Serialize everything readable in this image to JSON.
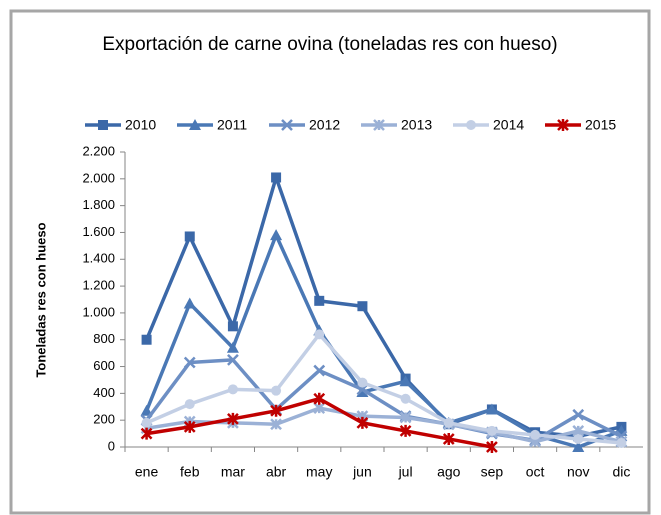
{
  "chart_data": {
    "type": "line",
    "title": "Exportación de carne ovina (toneladas res con hueso)",
    "y_label": "Toneladas res con hueso",
    "categories": [
      "ene",
      "feb",
      "mar",
      "abr",
      "may",
      "jun",
      "jul",
      "ago",
      "sep",
      "oct",
      "nov",
      "dic"
    ],
    "series": [
      {
        "name": "2010",
        "color": "#3b68a8",
        "marker": "square",
        "values": [
          800,
          1570,
          900,
          2010,
          1090,
          1050,
          510,
          170,
          280,
          110,
          80,
          150
        ]
      },
      {
        "name": "2011",
        "color": "#4a78b5",
        "marker": "triangle",
        "values": [
          270,
          1070,
          740,
          1580,
          870,
          410,
          490,
          180,
          280,
          90,
          0,
          120
        ]
      },
      {
        "name": "2012",
        "color": "#6d8fc4",
        "marker": "x",
        "values": [
          200,
          630,
          650,
          280,
          570,
          430,
          230,
          170,
          100,
          50,
          240,
          80
        ]
      },
      {
        "name": "2013",
        "color": "#9bb1d6",
        "marker": "asterisk",
        "values": [
          140,
          190,
          180,
          170,
          290,
          230,
          220,
          170,
          110,
          40,
          120,
          40
        ]
      },
      {
        "name": "2014",
        "color": "#c3cfe5",
        "marker": "circle",
        "values": [
          180,
          320,
          430,
          420,
          840,
          480,
          360,
          180,
          120,
          90,
          60,
          30
        ]
      },
      {
        "name": "2015",
        "color": "#c00000",
        "marker": "star",
        "values": [
          100,
          150,
          210,
          270,
          360,
          180,
          120,
          60,
          0,
          null,
          null,
          null
        ]
      }
    ],
    "ylim": [
      0,
      2200
    ],
    "yticks": [
      0,
      200,
      400,
      600,
      800,
      {
        "value": 1000,
        "label": "1.000"
      },
      {
        "value": 1200,
        "label": "1.200"
      },
      {
        "value": 1400,
        "label": "1.400"
      },
      {
        "value": 1600,
        "label": "1.600"
      },
      {
        "value": 1800,
        "label": "1.800"
      },
      {
        "value": 2000,
        "label": "2.000"
      },
      {
        "value": 2200,
        "label": "2.200"
      }
    ],
    "grid": false,
    "legend": "top"
  }
}
